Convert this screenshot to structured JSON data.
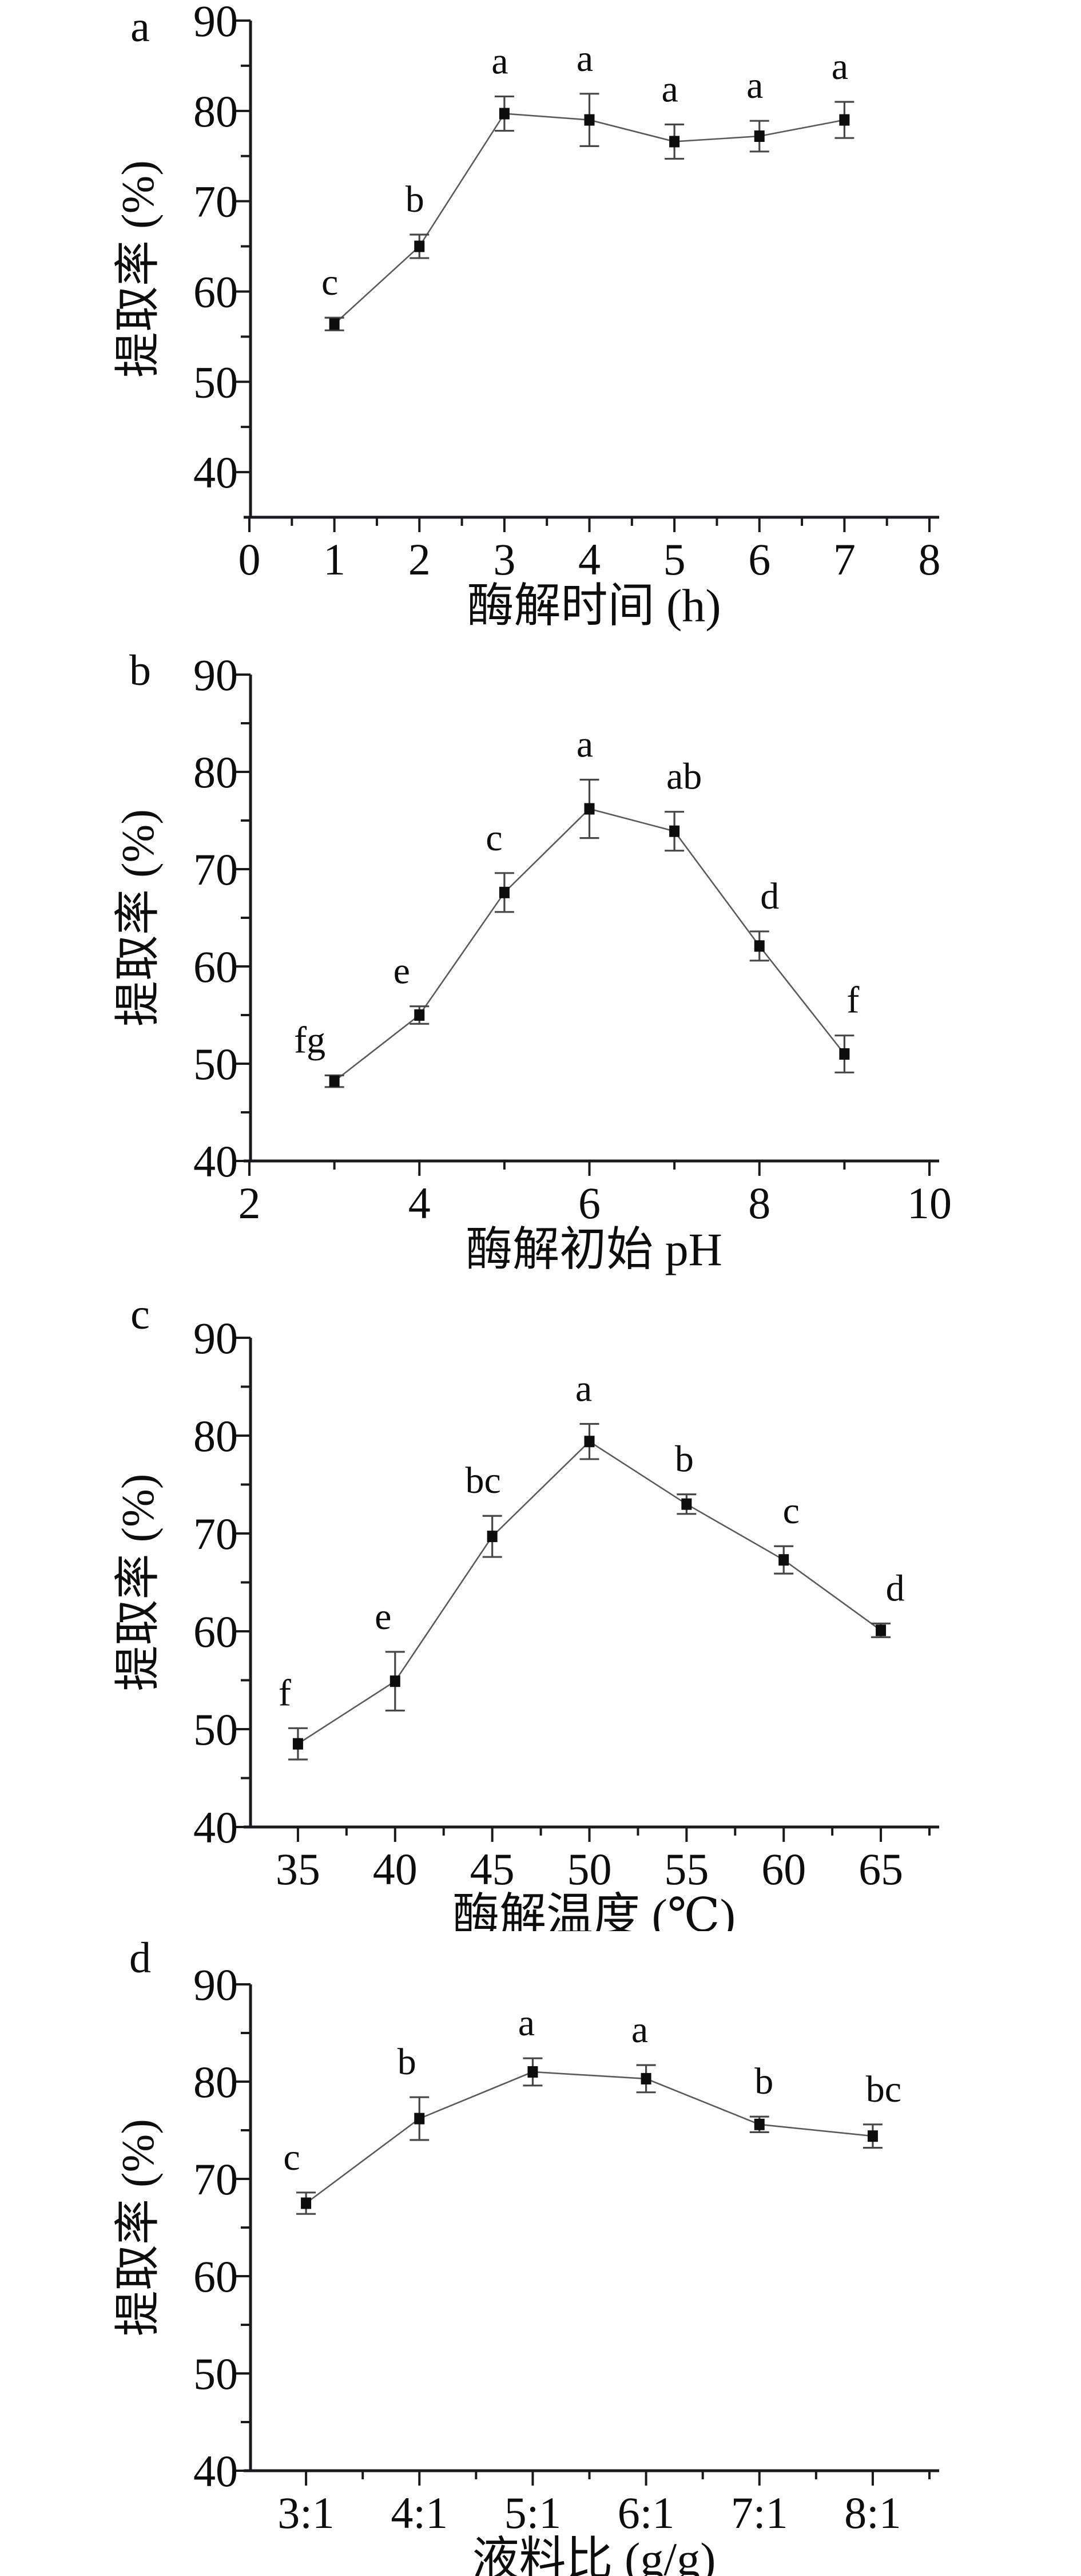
{
  "figure": {
    "background": "#ffffff",
    "axis_color": "#1a1a1e",
    "line_color": "#5a5a5a",
    "error_color": "#474747",
    "marker_color": "#0d0d0d",
    "text_color": "#0d0d0d"
  },
  "chart_data": [
    {
      "id": "panel-a",
      "type": "line",
      "panel_label": "a",
      "title": "",
      "xlabel": "酶解时间 (h)",
      "ylabel": "提取率 (%)",
      "x": [
        1,
        2,
        3,
        4,
        5,
        6,
        7
      ],
      "values": [
        56.4,
        65.0,
        79.7,
        79.0,
        76.6,
        77.2,
        79.0
      ],
      "errors": [
        0.7,
        1.3,
        1.9,
        2.9,
        1.9,
        1.7,
        2.0
      ],
      "point_labels": [
        "c",
        "b",
        "a",
        "a",
        "a",
        "a",
        "a"
      ],
      "label_dx": [
        -8,
        -8,
        -8,
        -8,
        -8,
        -8,
        -8
      ],
      "x_major_ticks": [
        0,
        1,
        2,
        3,
        4,
        5,
        6,
        7,
        8
      ],
      "x_major_labels": [
        "0",
        "1",
        "2",
        "3",
        "4",
        "5",
        "6",
        "7",
        "8"
      ],
      "x_minor_ticks": [
        0.5,
        1.5,
        2.5,
        3.5,
        4.5,
        5.5,
        6.5,
        7.5
      ],
      "y_major_ticks": [
        40,
        50,
        60,
        70,
        80,
        90
      ],
      "y_minor_ticks": [
        45,
        55,
        65,
        75,
        85
      ],
      "xlim": [
        0,
        8
      ],
      "ylim": [
        35,
        90
      ],
      "grid": false,
      "legend": null,
      "marker": "filled-square"
    },
    {
      "id": "panel-b",
      "type": "line",
      "panel_label": "b",
      "title": "",
      "xlabel": "酶解初始 pH",
      "ylabel": "提取率 (%)",
      "x": [
        3,
        4,
        5,
        6,
        7,
        8,
        9
      ],
      "values": [
        48.2,
        55.0,
        67.6,
        76.2,
        73.9,
        62.1,
        51.0
      ],
      "errors": [
        0.6,
        0.9,
        2.0,
        3.0,
        2.0,
        1.5,
        1.9
      ],
      "point_labels": [
        "fg",
        "e",
        "c",
        "a",
        "ab",
        "d",
        "f"
      ],
      "label_dx": [
        -43,
        -31,
        -18,
        -8,
        17,
        18,
        15
      ],
      "x_major_ticks": [
        2,
        4,
        6,
        8,
        10
      ],
      "x_major_labels": [
        "2",
        "4",
        "6",
        "8",
        "10"
      ],
      "x_minor_ticks": [
        3,
        5,
        7,
        9
      ],
      "y_major_ticks": [
        40,
        50,
        60,
        70,
        80,
        90
      ],
      "y_minor_ticks": [
        45,
        55,
        65,
        75,
        85
      ],
      "xlim": [
        2,
        10
      ],
      "ylim": [
        40,
        90
      ],
      "grid": false,
      "legend": null,
      "marker": "filled-square"
    },
    {
      "id": "panel-c",
      "type": "line",
      "panel_label": "c",
      "title": "",
      "xlabel": "酶解温度 (℃)",
      "ylabel": "提取率 (%)",
      "x": [
        35,
        40,
        45,
        50,
        55,
        60,
        65
      ],
      "values": [
        48.5,
        54.9,
        69.7,
        79.4,
        73.0,
        67.3,
        60.1
      ],
      "errors": [
        1.6,
        3.0,
        2.1,
        1.8,
        1.0,
        1.4,
        0.7
      ],
      "point_labels": [
        "f",
        "e",
        "bc",
        "a",
        "b",
        "c",
        "d"
      ],
      "label_dx": [
        -23,
        -21,
        -16,
        -10,
        -4,
        13,
        25
      ],
      "x_major_ticks": [
        35,
        40,
        45,
        50,
        55,
        60,
        65
      ],
      "x_major_labels": [
        "35",
        "40",
        "45",
        "50",
        "55",
        "60",
        "65"
      ],
      "x_minor_ticks": [
        37.5,
        42.5,
        47.5,
        52.5,
        57.5,
        62.5,
        67.5
      ],
      "y_major_ticks": [
        40,
        50,
        60,
        70,
        80,
        90
      ],
      "y_minor_ticks": [
        45,
        55,
        65,
        75,
        85
      ],
      "xlim": [
        32.5,
        67.5
      ],
      "ylim": [
        40,
        90
      ],
      "grid": false,
      "legend": null,
      "marker": "filled-square"
    },
    {
      "id": "panel-d",
      "type": "line",
      "panel_label": "d",
      "title": "",
      "xlabel": "液料比 (g/g)",
      "ylabel": "提取率 (%)",
      "x": [
        3,
        4,
        5,
        6,
        7,
        8
      ],
      "x_category_labels": [
        "3:1",
        "4:1",
        "5:1",
        "6:1",
        "7:1",
        "8:1"
      ],
      "values": [
        67.5,
        76.2,
        81.0,
        80.3,
        75.6,
        74.4
      ],
      "errors": [
        1.1,
        2.2,
        1.4,
        1.4,
        0.8,
        1.2
      ],
      "point_labels": [
        "c",
        "b",
        "a",
        "a",
        "b",
        "bc"
      ],
      "label_dx": [
        -25,
        -22,
        -11,
        -11,
        8,
        19
      ],
      "x_major_ticks": [
        3,
        4,
        5,
        6,
        7,
        8
      ],
      "x_major_labels": [
        "3:1",
        "4:1",
        "5:1",
        "6:1",
        "7:1",
        "8:1"
      ],
      "x_minor_ticks": [
        3.5,
        4.5,
        5.5,
        6.5,
        7.5,
        8.5
      ],
      "y_major_ticks": [
        40,
        50,
        60,
        70,
        80,
        90
      ],
      "y_minor_ticks": [
        45,
        55,
        65,
        75,
        85
      ],
      "xlim": [
        2.5,
        8.5
      ],
      "ylim": [
        40,
        90
      ],
      "grid": false,
      "legend": null,
      "marker": "filled-square"
    }
  ]
}
